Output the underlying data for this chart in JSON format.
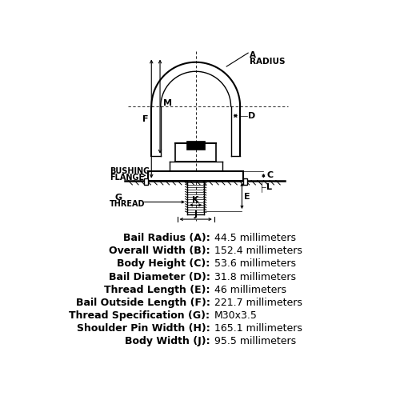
{
  "specs": [
    {
      "label": "Bail Radius (A):",
      "value": "44.5 millimeters"
    },
    {
      "label": "Overall Width (B):",
      "value": "152.4 millimeters"
    },
    {
      "label": "Body Height (C):",
      "value": "53.6 millimeters"
    },
    {
      "label": "Bail Diameter (D):",
      "value": "31.8 millimeters"
    },
    {
      "label": "Thread Length (E):",
      "value": "46 millimeters"
    },
    {
      "label": "Bail Outside Length (F):",
      "value": "221.7 millimeters"
    },
    {
      "label": "Thread Specification (G):",
      "value": "M30x3.5"
    },
    {
      "label": "Shoulder Pin Width (H):",
      "value": "165.1 millimeters"
    },
    {
      "label": "Body Width (J):",
      "value": "95.5 millimeters"
    }
  ],
  "bg_color": "#ffffff",
  "line_color": "#000000"
}
